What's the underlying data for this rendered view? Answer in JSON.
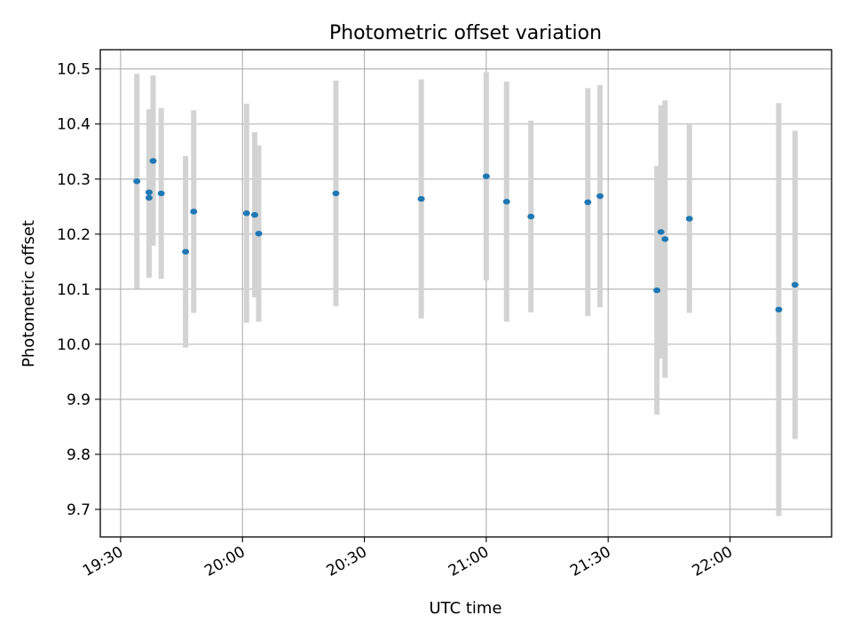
{
  "chart_data": {
    "type": "scatter",
    "title": "Photometric offset variation",
    "xlabel": "UTC time",
    "ylabel": "Photometric offset",
    "grid": true,
    "xlim": [
      "19:25",
      "22:25"
    ],
    "ylim": [
      9.65,
      10.535
    ],
    "xticks": [
      "19:30",
      "20:00",
      "20:30",
      "21:00",
      "21:30",
      "22:00"
    ],
    "yticks": [
      "9.7",
      "9.8",
      "9.9",
      "10.0",
      "10.1",
      "10.2",
      "10.3",
      "10.4",
      "10.5"
    ],
    "colors": {
      "point": "#1f77b4",
      "errorbar": "#d3d3d3",
      "grid": "#b0b0b0"
    },
    "series": [
      {
        "points": [
          {
            "x": "19:34",
            "y": 10.296,
            "ylow": 10.101,
            "yhigh": 10.491
          },
          {
            "x": "19:37",
            "y": 10.266,
            "ylow": 10.121,
            "yhigh": 10.411
          },
          {
            "x": "19:37",
            "y": 10.276,
            "ylow": 10.125,
            "yhigh": 10.427
          },
          {
            "x": "19:38",
            "y": 10.333,
            "ylow": 10.179,
            "yhigh": 10.488
          },
          {
            "x": "19:40",
            "y": 10.274,
            "ylow": 10.119,
            "yhigh": 10.429
          },
          {
            "x": "19:46",
            "y": 10.168,
            "ylow": 9.994,
            "yhigh": 10.342
          },
          {
            "x": "19:48",
            "y": 10.241,
            "ylow": 10.057,
            "yhigh": 10.425
          },
          {
            "x": "20:01",
            "y": 10.238,
            "ylow": 10.039,
            "yhigh": 10.437
          },
          {
            "x": "20:03",
            "y": 10.235,
            "ylow": 10.085,
            "yhigh": 10.385
          },
          {
            "x": "20:04",
            "y": 10.201,
            "ylow": 10.041,
            "yhigh": 10.361
          },
          {
            "x": "20:23",
            "y": 10.274,
            "ylow": 10.069,
            "yhigh": 10.479
          },
          {
            "x": "20:44",
            "y": 10.264,
            "ylow": 10.047,
            "yhigh": 10.481
          },
          {
            "x": "21:00",
            "y": 10.305,
            "ylow": 10.116,
            "yhigh": 10.494
          },
          {
            "x": "21:05",
            "y": 10.259,
            "ylow": 10.041,
            "yhigh": 10.477
          },
          {
            "x": "21:11",
            "y": 10.232,
            "ylow": 10.058,
            "yhigh": 10.406
          },
          {
            "x": "21:25",
            "y": 10.258,
            "ylow": 10.051,
            "yhigh": 10.465
          },
          {
            "x": "21:28",
            "y": 10.269,
            "ylow": 10.067,
            "yhigh": 10.471
          },
          {
            "x": "21:42",
            "y": 10.098,
            "ylow": 9.872,
            "yhigh": 10.324
          },
          {
            "x": "21:43",
            "y": 10.204,
            "ylow": 9.974,
            "yhigh": 10.434
          },
          {
            "x": "21:44",
            "y": 10.191,
            "ylow": 9.939,
            "yhigh": 10.443
          },
          {
            "x": "21:50",
            "y": 10.228,
            "ylow": 10.057,
            "yhigh": 10.399
          },
          {
            "x": "22:12",
            "y": 10.063,
            "ylow": 9.688,
            "yhigh": 10.438
          },
          {
            "x": "22:16",
            "y": 10.108,
            "ylow": 9.828,
            "yhigh": 10.388
          }
        ]
      }
    ]
  }
}
